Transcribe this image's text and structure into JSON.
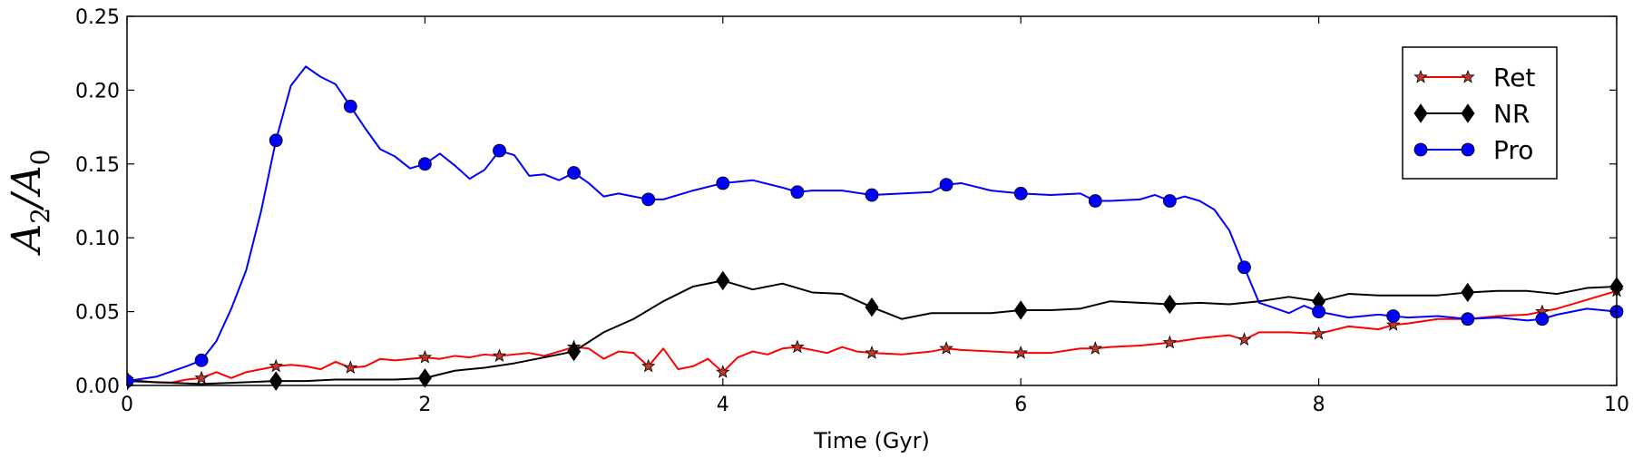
{
  "chart_data": {
    "type": "line",
    "title": "",
    "xlabel": "Time (Gyr)",
    "ylabel": {
      "main": "A",
      "sub_num": "2",
      "sep": "/A",
      "sub_den": "0"
    },
    "xlim": [
      0,
      10
    ],
    "ylim": [
      0,
      0.25
    ],
    "xticks": [
      0,
      2,
      4,
      6,
      8,
      10
    ],
    "xtick_labels": [
      "0",
      "2",
      "4",
      "6",
      "8",
      "10"
    ],
    "yticks": [
      0,
      0.05,
      0.1,
      0.15,
      0.2,
      0.25
    ],
    "ytick_labels": [
      "0.00",
      "0.05",
      "0.10",
      "0.15",
      "0.20",
      "0.25"
    ],
    "grid": false,
    "legend_position": "top-right",
    "series": [
      {
        "name": "Ret",
        "color": "#ff0000",
        "marker": "star",
        "marker_fill": "#c0392b",
        "x": [
          0,
          0.1,
          0.2,
          0.3,
          0.4,
          0.5,
          0.6,
          0.7,
          0.8,
          0.9,
          1.0,
          1.1,
          1.2,
          1.3,
          1.4,
          1.5,
          1.6,
          1.7,
          1.8,
          1.9,
          2.0,
          2.1,
          2.2,
          2.3,
          2.4,
          2.5,
          2.6,
          2.7,
          2.8,
          2.9,
          3.0,
          3.1,
          3.2,
          3.3,
          3.4,
          3.5,
          3.6,
          3.7,
          3.8,
          3.9,
          4.0,
          4.1,
          4.2,
          4.3,
          4.4,
          4.5,
          4.6,
          4.7,
          4.8,
          4.9,
          5.0,
          5.2,
          5.4,
          5.5,
          5.6,
          5.8,
          6.0,
          6.2,
          6.4,
          6.5,
          6.6,
          6.8,
          7.0,
          7.2,
          7.4,
          7.5,
          7.6,
          7.8,
          8.0,
          8.2,
          8.4,
          8.5,
          8.6,
          8.8,
          9.0,
          9.2,
          9.4,
          9.5,
          9.6,
          9.8,
          10.0
        ],
        "values": [
          0.004,
          0.003,
          0.002,
          0.002,
          0.004,
          0.005,
          0.009,
          0.005,
          0.009,
          0.011,
          0.013,
          0.014,
          0.013,
          0.011,
          0.016,
          0.012,
          0.013,
          0.018,
          0.017,
          0.018,
          0.019,
          0.018,
          0.02,
          0.019,
          0.021,
          0.02,
          0.021,
          0.022,
          0.02,
          0.023,
          0.026,
          0.025,
          0.018,
          0.023,
          0.022,
          0.013,
          0.025,
          0.011,
          0.013,
          0.018,
          0.009,
          0.019,
          0.023,
          0.021,
          0.025,
          0.026,
          0.024,
          0.022,
          0.026,
          0.023,
          0.022,
          0.021,
          0.023,
          0.025,
          0.024,
          0.023,
          0.022,
          0.022,
          0.025,
          0.025,
          0.026,
          0.027,
          0.029,
          0.032,
          0.034,
          0.031,
          0.036,
          0.036,
          0.035,
          0.04,
          0.038,
          0.041,
          0.042,
          0.045,
          0.045,
          0.047,
          0.048,
          0.05,
          0.052,
          0.058,
          0.064
        ],
        "marker_x": [
          0,
          0.5,
          1.0,
          1.5,
          2.0,
          2.5,
          3.0,
          3.5,
          4.0,
          4.5,
          5.0,
          5.5,
          6.0,
          6.5,
          7.0,
          7.5,
          8.0,
          8.5,
          9.0,
          9.5,
          10.0
        ]
      },
      {
        "name": "NR",
        "color": "#000000",
        "marker": "diamond",
        "marker_fill": "#000000",
        "x": [
          0,
          0.5,
          1.0,
          1.2,
          1.4,
          1.6,
          1.8,
          2.0,
          2.2,
          2.4,
          2.6,
          2.8,
          3.0,
          3.2,
          3.4,
          3.6,
          3.8,
          4.0,
          4.2,
          4.4,
          4.6,
          4.8,
          5.0,
          5.2,
          5.4,
          5.6,
          5.8,
          6.0,
          6.2,
          6.4,
          6.6,
          6.8,
          7.0,
          7.2,
          7.4,
          7.6,
          7.8,
          8.0,
          8.2,
          8.4,
          8.6,
          8.8,
          9.0,
          9.2,
          9.4,
          9.6,
          9.8,
          10.0
        ],
        "values": [
          0.003,
          0.001,
          0.003,
          0.003,
          0.004,
          0.004,
          0.004,
          0.005,
          0.01,
          0.012,
          0.015,
          0.019,
          0.023,
          0.036,
          0.045,
          0.057,
          0.067,
          0.071,
          0.065,
          0.069,
          0.063,
          0.062,
          0.053,
          0.045,
          0.049,
          0.049,
          0.049,
          0.051,
          0.051,
          0.052,
          0.057,
          0.056,
          0.055,
          0.056,
          0.055,
          0.057,
          0.06,
          0.057,
          0.062,
          0.061,
          0.061,
          0.061,
          0.063,
          0.064,
          0.064,
          0.062,
          0.066,
          0.067
        ],
        "marker_x": [
          0,
          1.0,
          2.0,
          3.0,
          4.0,
          5.0,
          6.0,
          7.0,
          8.0,
          9.0,
          10.0
        ]
      },
      {
        "name": "Pro",
        "color": "#0000ff",
        "marker": "circle",
        "marker_fill": "#0000ff",
        "x": [
          0,
          0.2,
          0.4,
          0.5,
          0.6,
          0.7,
          0.8,
          0.9,
          1.0,
          1.1,
          1.2,
          1.3,
          1.4,
          1.5,
          1.6,
          1.7,
          1.8,
          1.9,
          2.0,
          2.1,
          2.2,
          2.3,
          2.4,
          2.5,
          2.6,
          2.7,
          2.8,
          2.9,
          3.0,
          3.1,
          3.2,
          3.3,
          3.4,
          3.5,
          3.6,
          3.8,
          4.0,
          4.2,
          4.4,
          4.5,
          4.6,
          4.8,
          5.0,
          5.2,
          5.4,
          5.5,
          5.6,
          5.8,
          6.0,
          6.2,
          6.4,
          6.5,
          6.6,
          6.8,
          6.9,
          7.0,
          7.1,
          7.2,
          7.3,
          7.4,
          7.5,
          7.6,
          7.8,
          7.9,
          8.0,
          8.2,
          8.4,
          8.5,
          8.6,
          8.8,
          9.0,
          9.2,
          9.4,
          9.5,
          9.6,
          9.8,
          10.0
        ],
        "values": [
          0.003,
          0.006,
          0.013,
          0.017,
          0.03,
          0.052,
          0.078,
          0.118,
          0.166,
          0.203,
          0.216,
          0.209,
          0.204,
          0.189,
          0.174,
          0.16,
          0.155,
          0.147,
          0.15,
          0.157,
          0.149,
          0.14,
          0.146,
          0.159,
          0.156,
          0.142,
          0.143,
          0.139,
          0.144,
          0.137,
          0.128,
          0.13,
          0.128,
          0.126,
          0.126,
          0.132,
          0.137,
          0.139,
          0.134,
          0.131,
          0.132,
          0.132,
          0.129,
          0.13,
          0.131,
          0.136,
          0.137,
          0.132,
          0.13,
          0.129,
          0.13,
          0.125,
          0.125,
          0.126,
          0.129,
          0.125,
          0.128,
          0.125,
          0.119,
          0.105,
          0.08,
          0.056,
          0.049,
          0.054,
          0.05,
          0.046,
          0.048,
          0.047,
          0.046,
          0.047,
          0.045,
          0.046,
          0.044,
          0.045,
          0.048,
          0.052,
          0.05
        ],
        "marker_x": [
          0,
          0.5,
          1.0,
          1.5,
          2.0,
          2.5,
          3.0,
          3.5,
          4.0,
          4.5,
          5.0,
          5.5,
          6.0,
          6.5,
          7.0,
          7.5,
          8.0,
          8.5,
          9.0,
          9.5,
          10.0
        ]
      }
    ]
  }
}
